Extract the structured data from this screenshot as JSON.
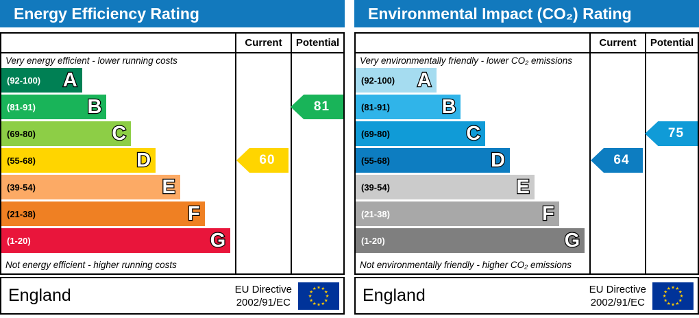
{
  "accent_header_color": "#1279bd",
  "panels": [
    {
      "title": "Energy Efficiency Rating",
      "columns": {
        "current": "Current",
        "potential": "Potential"
      },
      "top_note": "Very energy efficient - lower running costs",
      "bottom_note": "Not energy efficient - higher running costs",
      "bands": [
        {
          "letter": "A",
          "range": "(92-100)",
          "min": 92,
          "max": 100,
          "color": "#008054",
          "width": "34.5%",
          "range_color": "#ffffff"
        },
        {
          "letter": "B",
          "range": "(81-91)",
          "min": 81,
          "max": 91,
          "color": "#19b459",
          "width": "45%",
          "range_color": "#ffffff"
        },
        {
          "letter": "C",
          "range": "(69-80)",
          "min": 69,
          "max": 80,
          "color": "#8dce46",
          "width": "55.5%",
          "range_color": "#000000"
        },
        {
          "letter": "D",
          "range": "(55-68)",
          "min": 55,
          "max": 68,
          "color": "#ffd500",
          "width": "66%",
          "range_color": "#000000"
        },
        {
          "letter": "E",
          "range": "(39-54)",
          "min": 39,
          "max": 54,
          "color": "#fcaa65",
          "width": "76.5%",
          "range_color": "#000000"
        },
        {
          "letter": "F",
          "range": "(21-38)",
          "min": 21,
          "max": 38,
          "color": "#ef8023",
          "width": "87%",
          "range_color": "#000000"
        },
        {
          "letter": "G",
          "range": "(1-20)",
          "min": 1,
          "max": 20,
          "color": "#e9153b",
          "width": "98%",
          "range_color": "#ffffff"
        }
      ],
      "current": {
        "value": 60,
        "color": "#ffd500"
      },
      "potential": {
        "value": 81,
        "color": "#19b459"
      },
      "footer": {
        "region": "England",
        "directive_line1": "EU Directive",
        "directive_line2": "2002/91/EC"
      }
    },
    {
      "title": "Environmental Impact (CO₂) Rating",
      "columns": {
        "current": "Current",
        "potential": "Potential"
      },
      "top_note": "Very environmentally friendly - lower CO₂ emissions",
      "bottom_note": "Not environmentally friendly - higher CO₂ emissions",
      "bands": [
        {
          "letter": "A",
          "range": "(92-100)",
          "min": 92,
          "max": 100,
          "color": "#a5dcf0",
          "width": "34.5%",
          "range_color": "#000000"
        },
        {
          "letter": "B",
          "range": "(81-91)",
          "min": 81,
          "max": 91,
          "color": "#30b4e9",
          "width": "45%",
          "range_color": "#000000"
        },
        {
          "letter": "C",
          "range": "(69-80)",
          "min": 69,
          "max": 80,
          "color": "#109bd7",
          "width": "55.5%",
          "range_color": "#000000"
        },
        {
          "letter": "D",
          "range": "(55-68)",
          "min": 55,
          "max": 68,
          "color": "#0d7dc1",
          "width": "66%",
          "range_color": "#000000"
        },
        {
          "letter": "E",
          "range": "(39-54)",
          "min": 39,
          "max": 54,
          "color": "#cbcbcb",
          "width": "76.5%",
          "range_color": "#000000"
        },
        {
          "letter": "F",
          "range": "(21-38)",
          "min": 21,
          "max": 38,
          "color": "#a8a8a8",
          "width": "87%",
          "range_color": "#ffffff"
        },
        {
          "letter": "G",
          "range": "(1-20)",
          "min": 1,
          "max": 20,
          "color": "#7f7f7f",
          "width": "98%",
          "range_color": "#ffffff"
        }
      ],
      "current": {
        "value": 64,
        "color": "#0d7dc1"
      },
      "potential": {
        "value": 75,
        "color": "#109bd7"
      },
      "footer": {
        "region": "England",
        "directive_line1": "EU Directive",
        "directive_line2": "2002/91/EC"
      }
    }
  ],
  "eu_flag": {
    "background": "#003399",
    "star_color": "#ffcc00"
  },
  "chart_data": [
    {
      "type": "bar",
      "title": "Energy Efficiency Rating",
      "categories": [
        "A (92-100)",
        "B (81-91)",
        "C (69-80)",
        "D (55-68)",
        "E (39-54)",
        "F (21-38)",
        "G (1-20)"
      ],
      "band_colors": [
        "#008054",
        "#19b459",
        "#8dce46",
        "#ffd500",
        "#fcaa65",
        "#ef8023",
        "#e9153b"
      ],
      "series": [
        {
          "name": "Current",
          "value": 60,
          "band": "D"
        },
        {
          "name": "Potential",
          "value": 81,
          "band": "B"
        }
      ],
      "top_annotation": "Very energy efficient - lower running costs",
      "bottom_annotation": "Not energy efficient - higher running costs",
      "footer": "England — EU Directive 2002/91/EC"
    },
    {
      "type": "bar",
      "title": "Environmental Impact (CO₂) Rating",
      "categories": [
        "A (92-100)",
        "B (81-91)",
        "C (69-80)",
        "D (55-68)",
        "E (39-54)",
        "F (21-38)",
        "G (1-20)"
      ],
      "band_colors": [
        "#a5dcf0",
        "#30b4e9",
        "#109bd7",
        "#0d7dc1",
        "#cbcbcb",
        "#a8a8a8",
        "#7f7f7f"
      ],
      "series": [
        {
          "name": "Current",
          "value": 64,
          "band": "D"
        },
        {
          "name": "Potential",
          "value": 75,
          "band": "C"
        }
      ],
      "top_annotation": "Very environmentally friendly - lower CO₂ emissions",
      "bottom_annotation": "Not environmentally friendly - higher CO₂ emissions",
      "footer": "England — EU Directive 2002/91/EC"
    }
  ]
}
